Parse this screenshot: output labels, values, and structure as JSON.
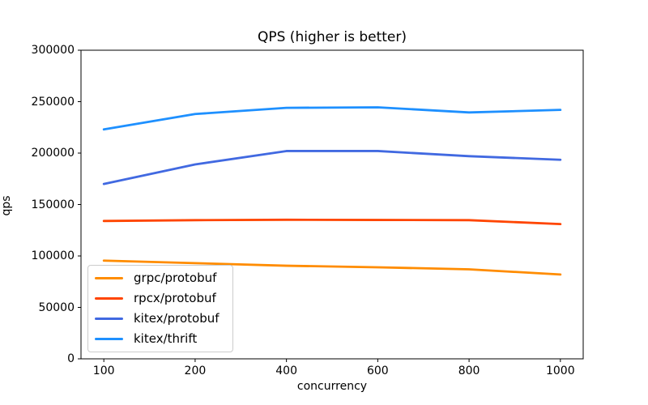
{
  "chart_data": {
    "type": "line",
    "title": "QPS (higher is better)",
    "xlabel": "concurrency",
    "ylabel": "qps",
    "x": [
      100,
      200,
      400,
      600,
      800,
      1000
    ],
    "x_tick_labels": [
      "100",
      "200",
      "400",
      "600",
      "800",
      "1000"
    ],
    "y_ticks": [
      0,
      50000,
      100000,
      150000,
      200000,
      250000,
      300000
    ],
    "ylim": [
      0,
      300000
    ],
    "grid": false,
    "legend_position": "lower-left",
    "series": [
      {
        "name": "grpc/protobuf",
        "color": "#ff8c00",
        "values": [
          95500,
          93000,
          90500,
          89000,
          87000,
          82000
        ]
      },
      {
        "name": "rpcx/protobuf",
        "color": "#ff4500",
        "values": [
          134000,
          134800,
          135200,
          135000,
          134800,
          131000
        ]
      },
      {
        "name": "kitex/protobuf",
        "color": "#4169e1",
        "values": [
          170000,
          189000,
          202000,
          202000,
          197000,
          193500
        ]
      },
      {
        "name": "kitex/thrift",
        "color": "#1e90ff",
        "values": [
          223000,
          238000,
          244000,
          244500,
          239500,
          242000
        ]
      }
    ]
  }
}
